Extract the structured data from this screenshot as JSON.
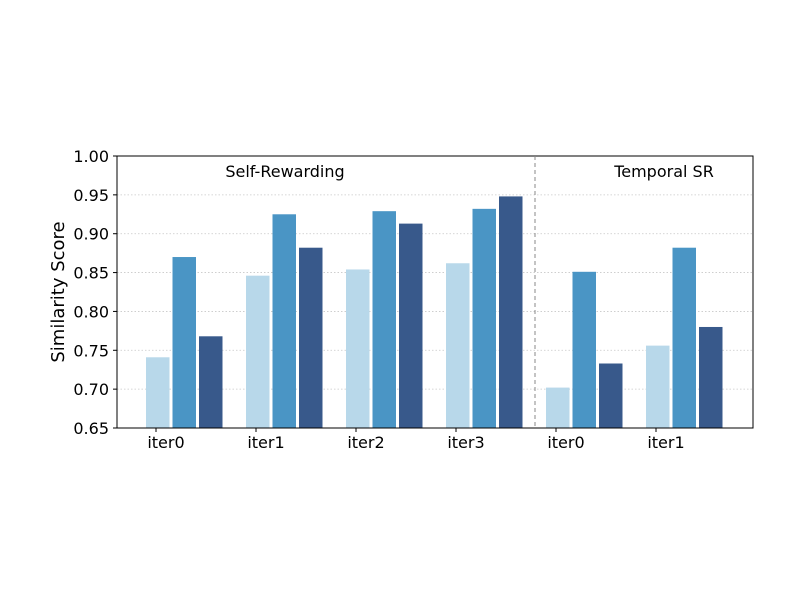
{
  "chart_data": {
    "type": "bar",
    "ylabel": "Similarity Score",
    "ylim": [
      0.65,
      1.0
    ],
    "yticks": [
      "0.65",
      "0.70",
      "0.75",
      "0.80",
      "0.85",
      "0.90",
      "0.95",
      "1.00"
    ],
    "grid": "horizontal dotted",
    "panels": [
      {
        "title": "Self-Rewarding",
        "categories": [
          "iter0",
          "iter1",
          "iter2",
          "iter3"
        ],
        "values": [
          [
            0.741,
            0.87,
            0.768
          ],
          [
            0.846,
            0.925,
            0.882
          ],
          [
            0.854,
            0.929,
            0.913
          ],
          [
            0.862,
            0.932,
            0.948
          ]
        ]
      },
      {
        "title": "Temporal SR",
        "categories": [
          "iter0",
          "iter1"
        ],
        "values": [
          [
            0.702,
            0.851,
            0.733
          ],
          [
            0.756,
            0.882,
            0.78
          ]
        ]
      }
    ],
    "series_colors": [
      "#b8d8ea",
      "#4a95c5",
      "#38598b"
    ]
  }
}
